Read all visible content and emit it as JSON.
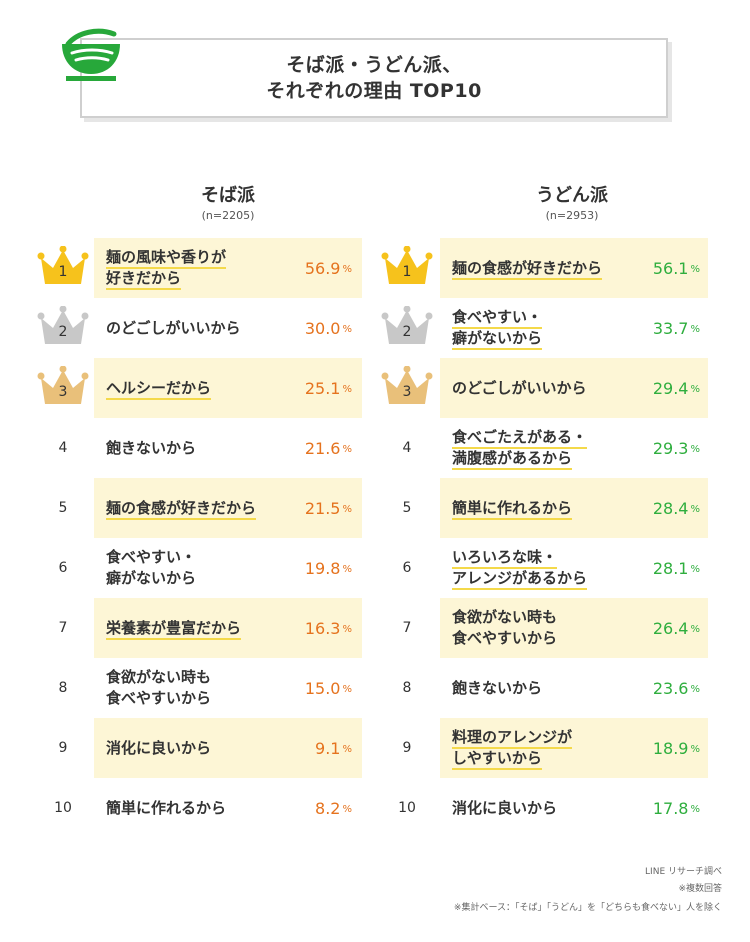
{
  "header": {
    "title_line1": "そば派・うどん派、",
    "title_line2": "それぞれの理由 TOP10",
    "accent_color": "#27a83a",
    "icon": "noodle-bowl-icon"
  },
  "soba": {
    "title": "そば派",
    "n": "(n=2205)",
    "value_color": "#e5731e",
    "unit": "%",
    "items": [
      {
        "rank": "1",
        "label": "麺の風味や香りが好きだから",
        "lines": [
          "麺の風味や香りが",
          "好きだから"
        ],
        "value": "56.9"
      },
      {
        "rank": "2",
        "label": "のどごしがいいから",
        "lines": [
          "のどごしがいいから"
        ],
        "value": "30.0"
      },
      {
        "rank": "3",
        "label": "ヘルシーだから",
        "lines": [
          "ヘルシーだから"
        ],
        "value": "25.1"
      },
      {
        "rank": "4",
        "label": "飽きないから",
        "lines": [
          "飽きないから"
        ],
        "value": "21.6"
      },
      {
        "rank": "5",
        "label": "麺の食感が好きだから",
        "lines": [
          "麺の食感が好きだから"
        ],
        "value": "21.5"
      },
      {
        "rank": "6",
        "label": "食べやすい・癖がないから",
        "lines": [
          "食べやすい・",
          "癖がないから"
        ],
        "value": "19.8"
      },
      {
        "rank": "7",
        "label": "栄養素が豊富だから",
        "lines": [
          "栄養素が豊富だから"
        ],
        "value": "16.3"
      },
      {
        "rank": "8",
        "label": "食欲がない時も食べやすいから",
        "lines": [
          "食欲がない時も",
          "食べやすいから"
        ],
        "value": "15.0"
      },
      {
        "rank": "9",
        "label": "消化に良いから",
        "lines": [
          "消化に良いから"
        ],
        "value": "9.1"
      },
      {
        "rank": "10",
        "label": "簡単に作れるから",
        "lines": [
          "簡単に作れるから"
        ],
        "value": "8.2"
      }
    ]
  },
  "udon": {
    "title": "うどん派",
    "n": "(n=2953)",
    "value_color": "#2fae3e",
    "unit": "%",
    "items": [
      {
        "rank": "1",
        "label": "麺の食感が好きだから",
        "lines": [
          "麺の食感が好きだから"
        ],
        "value": "56.1"
      },
      {
        "rank": "2",
        "label": "食べやすい・癖がないから",
        "lines": [
          "食べやすい・",
          "癖がないから"
        ],
        "value": "33.7"
      },
      {
        "rank": "3",
        "label": "のどごしがいいから",
        "lines": [
          "のどごしがいいから"
        ],
        "value": "29.4"
      },
      {
        "rank": "4",
        "label": "食べごたえがある・満腹感があるから",
        "lines": [
          "食べごたえがある・",
          "満腹感があるから"
        ],
        "value": "29.3"
      },
      {
        "rank": "5",
        "label": "簡単に作れるから",
        "lines": [
          "簡単に作れるから"
        ],
        "value": "28.4"
      },
      {
        "rank": "6",
        "label": "いろいろな味・アレンジがあるから",
        "lines": [
          "いろいろな味・",
          "アレンジがあるから"
        ],
        "value": "28.1"
      },
      {
        "rank": "7",
        "label": "食欲がない時も食べやすいから",
        "lines": [
          "食欲がない時も",
          "食べやすいから"
        ],
        "value": "26.4"
      },
      {
        "rank": "8",
        "label": "飽きないから",
        "lines": [
          "飽きないから"
        ],
        "value": "23.6"
      },
      {
        "rank": "9",
        "label": "料理のアレンジがしやすいから",
        "lines": [
          "料理のアレンジが",
          "しやすいから"
        ],
        "value": "18.9"
      },
      {
        "rank": "10",
        "label": "消化に良いから",
        "lines": [
          "消化に良いから"
        ],
        "value": "17.8"
      }
    ]
  },
  "crown_colors": {
    "gold": "#f6c21c",
    "silver": "#c8c8c8",
    "bronze": "#e9c07a"
  },
  "footer": {
    "source": "LINE リサーチ調べ",
    "note1": "※複数回答",
    "note2": "※集計ベース：「そば」「うどん」を「どちらも食べない」人を除く"
  }
}
